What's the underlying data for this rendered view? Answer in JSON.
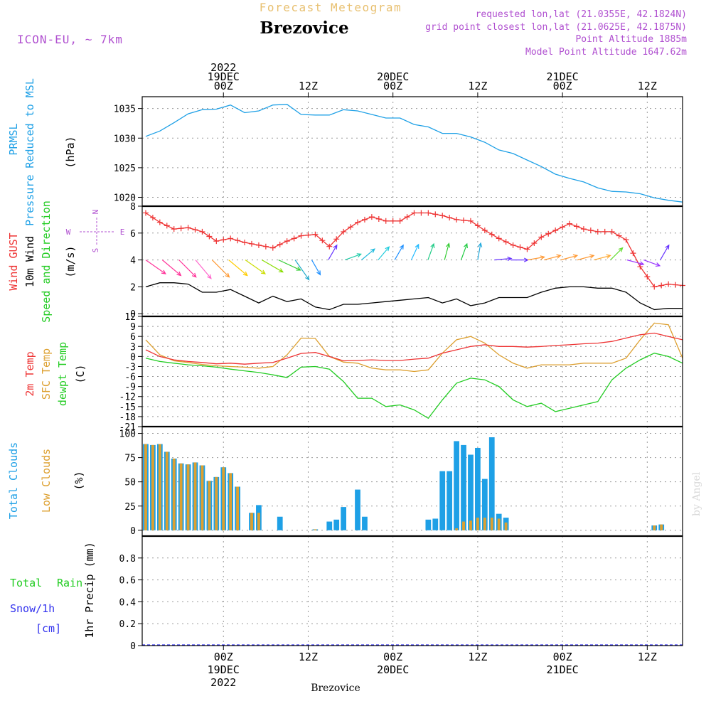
{
  "header": {
    "title": "Forecast Meteogram",
    "location": "Brezovice",
    "model": "ICON-EU, ~ 7km",
    "requested": "requested lon,lat (21.0355E, 42.1824N)",
    "gridpoint": "grid point closest lon,lat (21.0625E, 42.1875N)",
    "point_alt": "Point Altitude 1885m",
    "model_alt": "Model Point Altitude 1647.62m",
    "footer": "Brezovice",
    "credit": "by Angel"
  },
  "colors": {
    "pressure": "#1ea0e6",
    "gust": "#ee3333",
    "wind": "#000000",
    "t2m": "#ee3333",
    "sfc": "#dda030",
    "dewpt": "#22cc22",
    "total_clouds": "#1ea0e6",
    "low_clouds": "#dda030",
    "rain": "#22cc22",
    "snow": "#3333ee",
    "meta": "#b050d0"
  },
  "time_axis": {
    "top_labels": [
      {
        "h": 0,
        "lines": [
          "2022",
          "19DEC",
          "00Z"
        ]
      },
      {
        "h": 12,
        "lines": [
          "12Z"
        ]
      },
      {
        "h": 24,
        "lines": [
          "20DEC",
          "00Z"
        ]
      },
      {
        "h": 36,
        "lines": [
          "12Z"
        ]
      },
      {
        "h": 48,
        "lines": [
          "21DEC",
          "00Z"
        ]
      },
      {
        "h": 60,
        "lines": [
          "12Z"
        ]
      }
    ],
    "bottom_labels": [
      {
        "h": 0,
        "lines": [
          "00Z",
          "19DEC",
          "2022"
        ]
      },
      {
        "h": 12,
        "lines": [
          "12Z"
        ]
      },
      {
        "h": 24,
        "lines": [
          "00Z",
          "20DEC"
        ]
      },
      {
        "h": 36,
        "lines": [
          "12Z"
        ]
      },
      {
        "h": 48,
        "lines": [
          "00Z",
          "21DEC"
        ]
      },
      {
        "h": 60,
        "lines": [
          "12Z"
        ]
      }
    ],
    "range_hours": [
      -11.5,
      65
    ]
  },
  "panels": {
    "pressure": {
      "ylabels": [
        "PRMSL",
        "Pressure Reduced to MSL",
        "(hPa)"
      ],
      "ticks": [
        1020,
        1025,
        1030,
        1035
      ],
      "ylim": [
        1018.5,
        1037
      ]
    },
    "wind": {
      "ylabels": [
        "Wind GUST",
        "10m Wind",
        "Speed and Direction",
        "(m/s)"
      ],
      "compass": {
        "n": "N",
        "s": "S",
        "w": "W",
        "e": "E"
      },
      "ticks": [
        0,
        2,
        4,
        6,
        8
      ],
      "ylim": [
        -0.2,
        8
      ]
    },
    "temp": {
      "ylabels": [
        "2m Temp",
        "SFC Temp",
        "dewpt Temp",
        "(C)"
      ],
      "ticks": [
        -21,
        -18,
        -15,
        -12,
        -9,
        -6,
        -3,
        0,
        3,
        6,
        9,
        12
      ],
      "ylim": [
        -21,
        12
      ]
    },
    "clouds": {
      "ylabels": [
        "Total Clouds",
        "Low Clouds",
        "(%)"
      ],
      "ticks": [
        0,
        25,
        50,
        75,
        100
      ],
      "ylim": [
        -6,
        107
      ]
    },
    "precip": {
      "ylabels": [
        "Total",
        "Rain",
        "Snow/1h",
        "[cm]",
        "1hr Precip (mm)"
      ],
      "ticks": [
        0,
        0.2,
        0.4,
        0.6,
        0.8
      ],
      "ylim": [
        0,
        1
      ]
    }
  },
  "chart_data": [
    {
      "type": "line",
      "title": "PRMSL Pressure Reduced to MSL",
      "ylabel": "(hPa)",
      "x": [
        -11,
        -9,
        -7,
        -5,
        -3,
        -1,
        1,
        3,
        5,
        7,
        9,
        11,
        13,
        15,
        17,
        19,
        21,
        23,
        25,
        27,
        29,
        31,
        33,
        35,
        37,
        39,
        41,
        43,
        45,
        47,
        49,
        51,
        53,
        55,
        57,
        59,
        61,
        63,
        65
      ],
      "series": [
        {
          "name": "PRMSL",
          "values": [
            1030.3,
            1031.2,
            1032.6,
            1034.1,
            1034.8,
            1034.9,
            1035.6,
            1034.3,
            1034.6,
            1035.6,
            1035.7,
            1034.0,
            1033.9,
            1033.9,
            1034.8,
            1034.6,
            1034.0,
            1033.4,
            1033.4,
            1032.3,
            1031.9,
            1030.8,
            1030.8,
            1030.2,
            1029.3,
            1028.0,
            1027.4,
            1026.3,
            1025.2,
            1023.9,
            1023.2,
            1022.6,
            1021.6,
            1021.0,
            1020.9,
            1020.6,
            1019.9,
            1019.5,
            1019.2
          ]
        }
      ]
    },
    {
      "type": "line",
      "title": "Wind GUST / 10m Wind Speed and Direction",
      "ylabel": "(m/s)",
      "x": [
        -11,
        -9,
        -7,
        -5,
        -3,
        -1,
        1,
        3,
        5,
        7,
        9,
        11,
        13,
        15,
        17,
        19,
        21,
        23,
        25,
        27,
        29,
        31,
        33,
        35,
        37,
        39,
        41,
        43,
        45,
        47,
        49,
        51,
        53,
        55,
        57,
        59,
        61,
        63,
        65
      ],
      "series": [
        {
          "name": "Wind GUST",
          "values": [
            7.5,
            6.8,
            6.3,
            6.4,
            6.1,
            5.4,
            5.6,
            5.3,
            5.1,
            4.9,
            5.4,
            5.8,
            5.9,
            5.0,
            6.1,
            6.8,
            7.2,
            6.9,
            6.9,
            7.5,
            7.5,
            7.3,
            7.0,
            6.9,
            6.2,
            5.6,
            5.1,
            4.8,
            5.7,
            6.2,
            6.7,
            6.3,
            6.1,
            6.1,
            5.5,
            3.5,
            2.0,
            2.2,
            2.1
          ]
        },
        {
          "name": "10m Wind",
          "values": [
            2.0,
            2.3,
            2.3,
            2.2,
            1.6,
            1.6,
            1.8,
            1.3,
            0.8,
            1.3,
            0.9,
            1.1,
            0.5,
            0.3,
            0.7,
            0.7,
            0.8,
            0.9,
            1.0,
            1.1,
            1.2,
            0.8,
            1.1,
            0.6,
            0.8,
            1.2,
            1.2,
            1.2,
            1.6,
            1.9,
            2.0,
            2.0,
            1.9,
            1.9,
            1.6,
            0.8,
            0.3,
            0.4,
            0.4
          ]
        }
      ]
    },
    {
      "type": "line",
      "title": "2m Temp / SFC Temp / dewpt Temp",
      "ylabel": "(C)",
      "x": [
        -11,
        -9,
        -7,
        -5,
        -3,
        -1,
        1,
        3,
        5,
        7,
        9,
        11,
        13,
        15,
        17,
        19,
        21,
        23,
        25,
        27,
        29,
        31,
        33,
        35,
        37,
        39,
        41,
        43,
        45,
        47,
        49,
        51,
        53,
        55,
        57,
        59,
        61,
        63,
        65
      ],
      "series": [
        {
          "name": "2m Temp",
          "values": [
            2.0,
            0.0,
            -1.0,
            -1.5,
            -1.8,
            -2.2,
            -2.0,
            -2.3,
            -2.0,
            -1.8,
            -0.5,
            0.9,
            1.2,
            0.0,
            -1.3,
            -1.2,
            -1.0,
            -1.2,
            -1.2,
            -0.8,
            -0.5,
            1.0,
            2.0,
            3.0,
            3.5,
            3.0,
            3.0,
            2.8,
            3.0,
            3.3,
            3.5,
            3.8,
            4.0,
            4.5,
            5.5,
            6.5,
            7.0,
            6.0,
            5.0
          ]
        },
        {
          "name": "SFC Temp",
          "values": [
            5.0,
            0.5,
            -1.3,
            -1.8,
            -2.4,
            -2.8,
            -3.0,
            -3.2,
            -3.5,
            -3.0,
            0.5,
            5.5,
            5.4,
            0.0,
            -1.7,
            -2.0,
            -3.5,
            -4.0,
            -4.0,
            -4.5,
            -4.0,
            1.0,
            5.0,
            6.0,
            4.0,
            0.5,
            -2.0,
            -3.5,
            -2.5,
            -2.5,
            -2.5,
            -2.0,
            -2.0,
            -2.0,
            -0.5,
            5.0,
            10.0,
            9.5,
            -0.5
          ]
        },
        {
          "name": "dewpt Temp",
          "values": [
            -0.5,
            -1.5,
            -2.0,
            -2.5,
            -2.8,
            -3.2,
            -3.8,
            -4.3,
            -4.8,
            -5.5,
            -6.3,
            -3.2,
            -3.0,
            -3.8,
            -7.5,
            -12.5,
            -12.5,
            -15.0,
            -14.5,
            -16.0,
            -18.5,
            -13.0,
            -8.0,
            -6.5,
            -7.0,
            -9.0,
            -13.0,
            -15.0,
            -14.0,
            -16.5,
            -15.5,
            -14.5,
            -13.5,
            -7.0,
            -3.5,
            -1.0,
            1.0,
            0.0,
            -2.0
          ]
        }
      ]
    },
    {
      "type": "bar",
      "title": "Total Clouds / Low Clouds",
      "ylabel": "(%)",
      "x": [
        -11,
        -10,
        -9,
        -8,
        -7,
        -6,
        -5,
        -4,
        -3,
        -2,
        -1,
        0,
        1,
        2,
        3,
        4,
        5,
        6,
        7,
        8,
        9,
        10,
        11,
        12,
        13,
        14,
        15,
        16,
        17,
        18,
        19,
        20,
        21,
        22,
        23,
        24,
        25,
        26,
        27,
        28,
        29,
        30,
        31,
        32,
        33,
        34,
        35,
        36,
        37,
        38,
        39,
        40,
        41,
        42,
        43,
        44,
        45,
        46,
        47,
        48,
        49,
        50,
        51,
        52,
        53,
        54,
        55,
        56,
        57,
        58,
        59,
        60,
        61,
        62,
        63,
        64,
        65
      ],
      "series": [
        {
          "name": "Total Clouds",
          "values": [
            89,
            88,
            89,
            81,
            74,
            69,
            68,
            70,
            67,
            51,
            55,
            65,
            59,
            45,
            0,
            18,
            26,
            0,
            0,
            14,
            0,
            0,
            0,
            0,
            1,
            0,
            9,
            11,
            24,
            0,
            42,
            14,
            0,
            0,
            0,
            0,
            0,
            0,
            0,
            0,
            11,
            12,
            61,
            61,
            92,
            88,
            78,
            85,
            53,
            96,
            17,
            13,
            0,
            0,
            0,
            0,
            0,
            0,
            0,
            0,
            0,
            0,
            0,
            0,
            0,
            0,
            0,
            0,
            0,
            0,
            0,
            0,
            5,
            6,
            0,
            0,
            0
          ]
        },
        {
          "name": "Low Clouds",
          "values": [
            89,
            88,
            89,
            81,
            74,
            69,
            68,
            70,
            67,
            51,
            55,
            65,
            59,
            45,
            0,
            18,
            18,
            0,
            0,
            0,
            0,
            0,
            0,
            0,
            1,
            0,
            0,
            0,
            0,
            0,
            0,
            0,
            0,
            0,
            0,
            0,
            0,
            0,
            0,
            0,
            0,
            0,
            0,
            0,
            2,
            9,
            10,
            13,
            13,
            13,
            12,
            8,
            0,
            0,
            0,
            0,
            0,
            0,
            0,
            0,
            0,
            0,
            0,
            0,
            0,
            0,
            0,
            0,
            0,
            0,
            0,
            0,
            5,
            6,
            0,
            0,
            0
          ]
        }
      ]
    },
    {
      "type": "bar",
      "title": "1hr Precip",
      "ylabel": "1hr Precip (mm)",
      "x": [
        -11,
        65
      ],
      "series": [
        {
          "name": "Rain",
          "values": [
            0,
            0
          ]
        },
        {
          "name": "Snow/1h",
          "values": [
            0,
            0
          ]
        }
      ]
    }
  ]
}
